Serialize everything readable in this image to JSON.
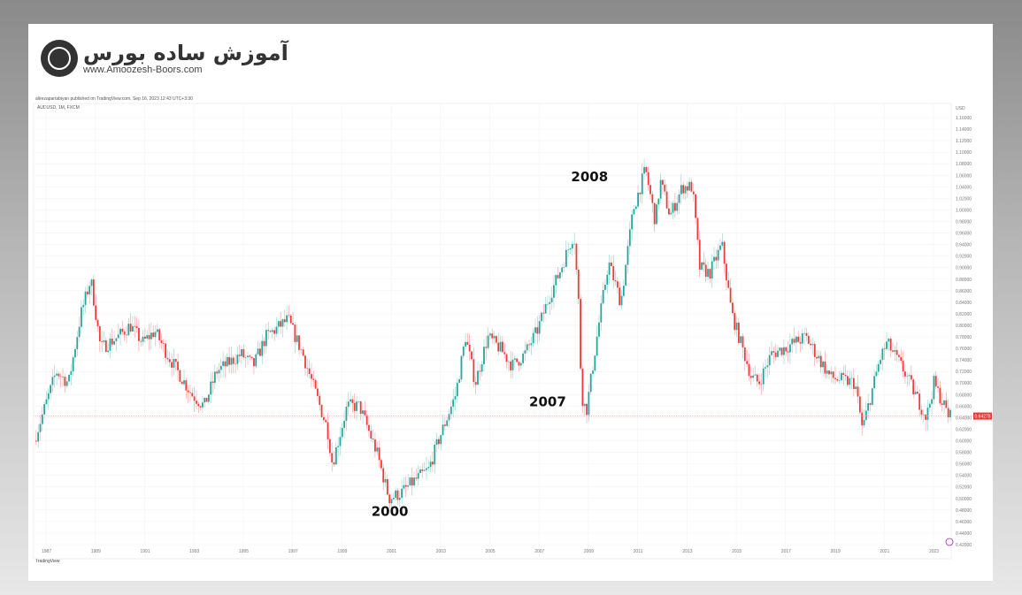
{
  "logo": {
    "title_fa": "آموزش ساده بورس",
    "url": "www.Amoozesh-Boors.com"
  },
  "published": "alirezapartabiyan published on TradingView.com, Sep 16, 2023 12:43 UTC+3:30",
  "symbol": "AUDUSD, 1M, FXCM",
  "footer": "TradingView",
  "chart_data": {
    "type": "candlestick",
    "currency": "USD",
    "last_price": "0.64278",
    "ylim": [
      0.42,
      1.16
    ],
    "yticks": [
      "1.16000",
      "1.14000",
      "1.12000",
      "1.10000",
      "1.08000",
      "1.06000",
      "1.04000",
      "1.02000",
      "1.00000",
      "0.98000",
      "0.96000",
      "0.94000",
      "0.92000",
      "0.90000",
      "0.88000",
      "0.86000",
      "0.84000",
      "0.82000",
      "0.80000",
      "0.78000",
      "0.76000",
      "0.74000",
      "0.72000",
      "0.70000",
      "0.68000",
      "0.66000",
      "0.64000",
      "0.62000",
      "0.60000",
      "0.58000",
      "0.56000",
      "0.54000",
      "0.52000",
      "0.50000",
      "0.48000",
      "0.46000",
      "0.44000",
      "0.42000"
    ],
    "xticks": [
      "1987",
      "1989",
      "1991",
      "1993",
      "1995",
      "1997",
      "1999",
      "2001",
      "2003",
      "2005",
      "2007",
      "2009",
      "2011",
      "2013",
      "2015",
      "2017",
      "2019",
      "2021",
      "2023"
    ],
    "xlim": [
      1986.6,
      2023.9
    ],
    "path": [
      [
        1986.6,
        0.6
      ],
      [
        1987.5,
        0.72
      ],
      [
        1988.0,
        0.7
      ],
      [
        1988.5,
        0.82
      ],
      [
        1988.9,
        0.88
      ],
      [
        1989.3,
        0.76
      ],
      [
        1990,
        0.78
      ],
      [
        1990.5,
        0.8
      ],
      [
        1991,
        0.77
      ],
      [
        1991.5,
        0.79
      ],
      [
        1992,
        0.75
      ],
      [
        1993,
        0.68
      ],
      [
        1993.5,
        0.66
      ],
      [
        1994,
        0.72
      ],
      [
        1995,
        0.75
      ],
      [
        1995.5,
        0.73
      ],
      [
        1996,
        0.78
      ],
      [
        1996.9,
        0.81
      ],
      [
        1997.5,
        0.75
      ],
      [
        1998.5,
        0.62
      ],
      [
        1998.7,
        0.56
      ],
      [
        1999.3,
        0.66
      ],
      [
        1999.8,
        0.66
      ],
      [
        2000.5,
        0.58
      ],
      [
        2001.0,
        0.5
      ],
      [
        2001.5,
        0.51
      ],
      [
        2002,
        0.53
      ],
      [
        2002.6,
        0.55
      ],
      [
        2003,
        0.6
      ],
      [
        2003.7,
        0.68
      ],
      [
        2004.1,
        0.78
      ],
      [
        2004.5,
        0.7
      ],
      [
        2005,
        0.78
      ],
      [
        2005.5,
        0.76
      ],
      [
        2006,
        0.73
      ],
      [
        2006.5,
        0.75
      ],
      [
        2007,
        0.79
      ],
      [
        2007.5,
        0.85
      ],
      [
        2007.9,
        0.89
      ],
      [
        2008.5,
        0.96
      ],
      [
        2008.7,
        0.83
      ],
      [
        2008.8,
        0.68
      ],
      [
        2009,
        0.65
      ],
      [
        2009.5,
        0.8
      ],
      [
        2009.9,
        0.91
      ],
      [
        2010.4,
        0.84
      ],
      [
        2010.9,
        1.0
      ],
      [
        2011.4,
        1.07
      ],
      [
        2011.8,
        0.98
      ],
      [
        2012,
        1.05
      ],
      [
        2012.4,
        0.99
      ],
      [
        2012.9,
        1.04
      ],
      [
        2013.3,
        1.04
      ],
      [
        2013.6,
        0.9
      ],
      [
        2014,
        0.89
      ],
      [
        2014.5,
        0.94
      ],
      [
        2014.9,
        0.82
      ],
      [
        2015.7,
        0.71
      ],
      [
        2016,
        0.7
      ],
      [
        2016.5,
        0.75
      ],
      [
        2017,
        0.76
      ],
      [
        2017.9,
        0.78
      ],
      [
        2018.9,
        0.71
      ],
      [
        2019.9,
        0.7
      ],
      [
        2020.2,
        0.62
      ],
      [
        2020.9,
        0.74
      ],
      [
        2021.2,
        0.77
      ],
      [
        2021.9,
        0.72
      ],
      [
        2022.8,
        0.64
      ],
      [
        2023.1,
        0.7
      ],
      [
        2023.7,
        0.643
      ]
    ],
    "annotations": [
      {
        "text": "2008",
        "year": 2008.3,
        "price": 1.05
      },
      {
        "text": "2007",
        "year": 2006.6,
        "price": 0.66
      },
      {
        "text": "2000",
        "year": 2000.2,
        "price": 0.47
      }
    ],
    "colors": {
      "up": "#26a69a",
      "down": "#ef3a3a",
      "price_line": "#f2a0a0"
    }
  }
}
